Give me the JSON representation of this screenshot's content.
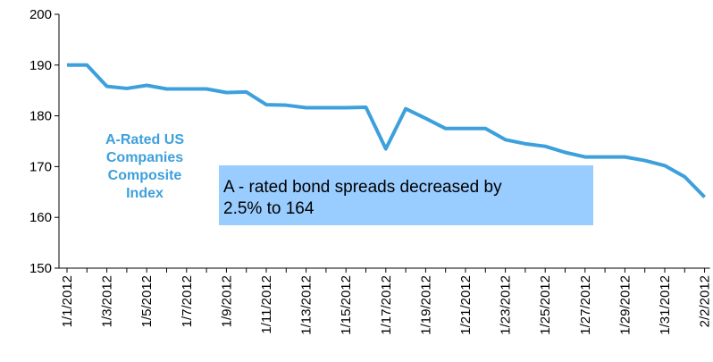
{
  "chart_data": {
    "type": "line",
    "categories": [
      "1/1/2012",
      null,
      "1/3/2012",
      null,
      "1/5/2012",
      null,
      "1/7/2012",
      null,
      "1/9/2012",
      null,
      "1/11/2012",
      null,
      "1/13/2012",
      null,
      "1/15/2012",
      null,
      "1/17/2012",
      null,
      "1/19/2012",
      null,
      "1/21/2012",
      null,
      "1/23/2012",
      null,
      "1/25/2012",
      null,
      "1/27/2012",
      null,
      "1/29/2012",
      null,
      "1/31/2012",
      null,
      "2/2/2012"
    ],
    "values": [
      190,
      190,
      185.8,
      185.4,
      186,
      185.3,
      185.3,
      185.3,
      184.6,
      184.7,
      182.2,
      182.1,
      181.6,
      181.6,
      181.6,
      181.7,
      173.5,
      181.4,
      179.5,
      177.5,
      177.5,
      177.5,
      175.3,
      174.5,
      174,
      172.8,
      171.9,
      171.9,
      171.9,
      171.2,
      170.2,
      168,
      164
    ],
    "color": "#3da0dc",
    "series_label": [
      "A-Rated US",
      "Companies",
      "Composite",
      "Index"
    ],
    "annotation": {
      "lines": [
        "A - rated bond spreads decreased by",
        "2.5% to 164"
      ],
      "color": "#99ccff"
    },
    "ylim": [
      150,
      200
    ],
    "yticks": [
      150,
      160,
      170,
      180,
      190,
      200
    ]
  }
}
